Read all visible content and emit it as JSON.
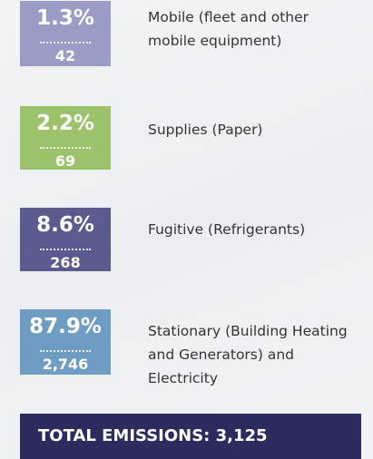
{
  "items": [
    {
      "percent": "1.3%",
      "amount": "42",
      "label": [
        "Mobile (fleet and other",
        "mobile equipment)"
      ],
      "color": "#9b9cc6"
    },
    {
      "percent": "2.2%",
      "amount": "69",
      "label": [
        "Supplies (Paper)"
      ],
      "color": "#9cc26c"
    },
    {
      "percent": "8.6%",
      "amount": "268",
      "label": [
        "Fugitive (Refrigerants)"
      ],
      "color": "#5b5a8e"
    },
    {
      "percent": "87.9%",
      "amount": "2,746",
      "label": [
        "Stationary (Building Heating",
        "and Generators) and",
        "Electricity"
      ],
      "color": "#6e9cc3"
    }
  ],
  "total": "TOTAL EMISSIONS: 3,125"
}
